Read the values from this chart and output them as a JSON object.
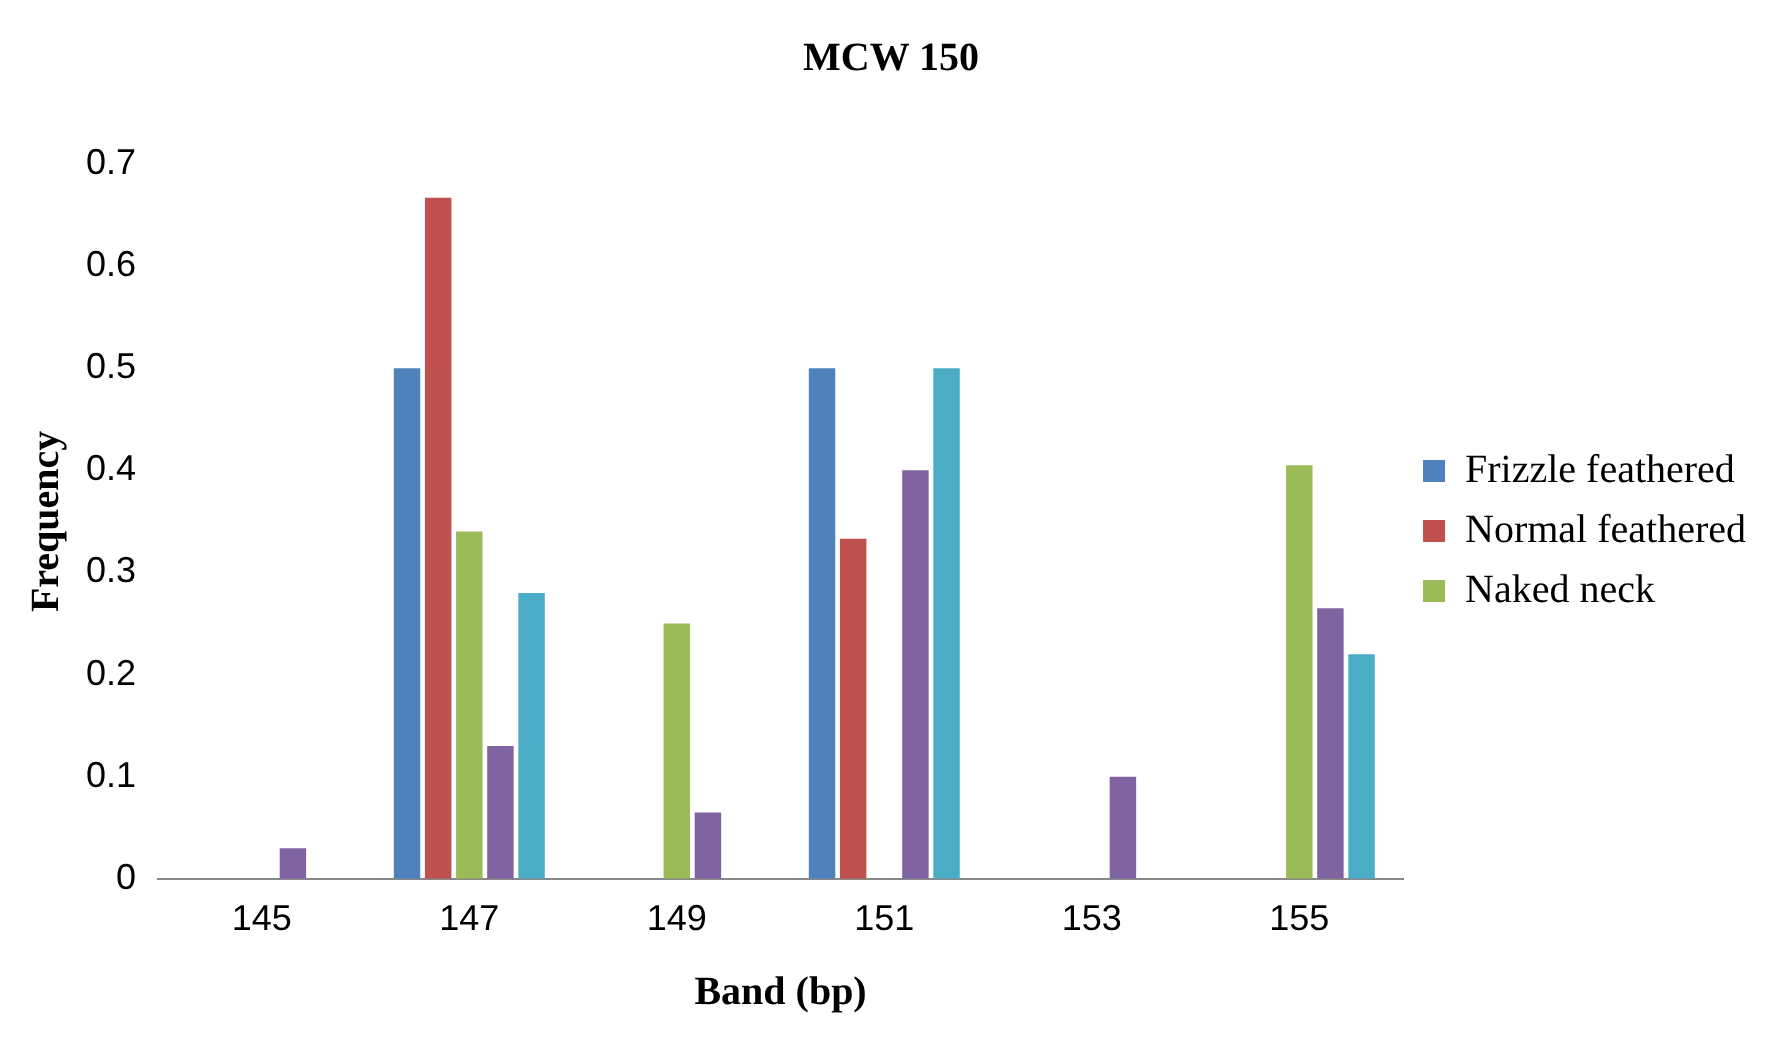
{
  "chart_data": {
    "type": "bar",
    "title": "MCW 150",
    "xlabel": "Band (bp)",
    "ylabel": "Frequency",
    "categories": [
      "145",
      "147",
      "149",
      "151",
      "153",
      "155"
    ],
    "series": [
      {
        "name": "Frizzle feathered",
        "color": "#4f81bd",
        "values": [
          0,
          0.5,
          0,
          0.5,
          0,
          0
        ]
      },
      {
        "name": "Normal feathered",
        "color": "#c0504d",
        "values": [
          0,
          0.667,
          0,
          0.333,
          0,
          0
        ]
      },
      {
        "name": "Naked neck",
        "color": "#9bbb59",
        "values": [
          0,
          0.34,
          0.25,
          0,
          0,
          0.405
        ]
      },
      {
        "color": "#8064a2",
        "values": [
          0.03,
          0.13,
          0.065,
          0.4,
          0.1,
          0.265
        ]
      },
      {
        "color": "#4bacc6",
        "values": [
          0,
          0.28,
          0,
          0.5,
          0,
          0.22
        ]
      }
    ],
    "ylim": [
      0,
      0.7
    ],
    "yticks": [
      0,
      0.1,
      0.2,
      0.3,
      0.4,
      0.5,
      0.6,
      0.7
    ],
    "grid": false,
    "legend": "right"
  }
}
